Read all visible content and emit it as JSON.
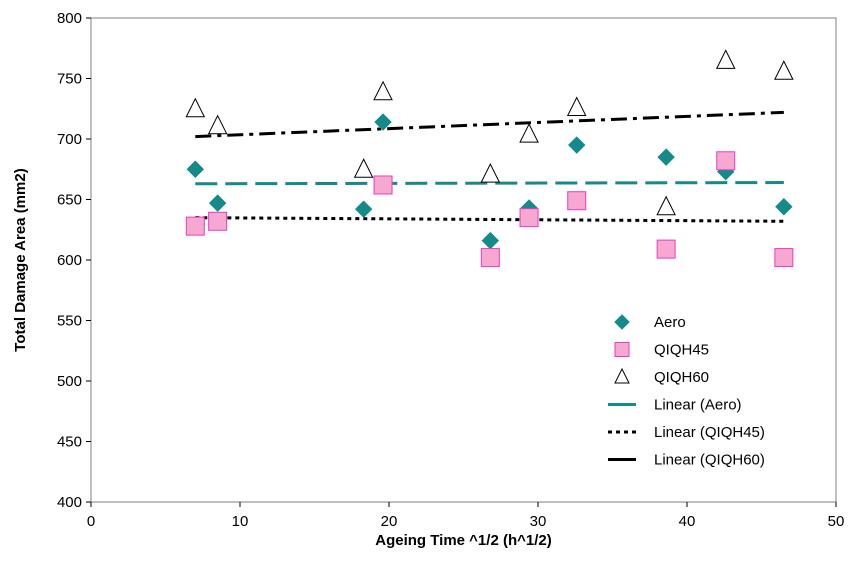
{
  "chart_data": {
    "type": "scatter",
    "title": "",
    "xlabel": "Ageing Time ^1/2 (h^1/2)",
    "ylabel": "Total Damage Area (mm2)",
    "xlim": [
      0,
      50
    ],
    "ylim": [
      400,
      800
    ],
    "xticks": [
      "0",
      "10",
      "20",
      "30",
      "40",
      "50"
    ],
    "yticks": [
      "400",
      "450",
      "500",
      "550",
      "600",
      "650",
      "700",
      "750",
      "800"
    ],
    "grid": false,
    "legend_position": "right-middle",
    "series": [
      {
        "name": "Aero",
        "marker": "diamond",
        "color": "#148a8a",
        "points": [
          [
            7,
            675
          ],
          [
            8.5,
            647
          ],
          [
            18.3,
            642
          ],
          [
            19.6,
            714
          ],
          [
            26.8,
            616
          ],
          [
            29.4,
            643
          ],
          [
            32.6,
            695
          ],
          [
            38.6,
            685
          ],
          [
            42.6,
            673
          ],
          [
            46.5,
            644
          ]
        ]
      },
      {
        "name": "QIQH45",
        "marker": "square",
        "color": "#f7a8d0",
        "stroke": "#e040c0",
        "points": [
          [
            7,
            628
          ],
          [
            8.5,
            632
          ],
          [
            19.6,
            662
          ],
          [
            26.8,
            602
          ],
          [
            29.4,
            635
          ],
          [
            32.6,
            649
          ],
          [
            38.6,
            609
          ],
          [
            42.6,
            682
          ],
          [
            46.5,
            602
          ]
        ]
      },
      {
        "name": "QIQH60",
        "marker": "triangle-open",
        "color": "#000000",
        "points": [
          [
            7,
            725
          ],
          [
            8.5,
            711
          ],
          [
            18.3,
            675
          ],
          [
            19.6,
            739
          ],
          [
            26.8,
            671
          ],
          [
            29.4,
            704
          ],
          [
            32.6,
            726
          ],
          [
            38.6,
            644
          ],
          [
            42.6,
            765
          ],
          [
            46.5,
            756
          ]
        ]
      },
      {
        "name": "Linear (Aero)",
        "type": "line",
        "style": "dashed",
        "color": "#148a8a",
        "points": [
          [
            7,
            663
          ],
          [
            46.5,
            664
          ]
        ]
      },
      {
        "name": "Linear (QIQH45)",
        "type": "line",
        "style": "dotted",
        "color": "#000000",
        "points": [
          [
            7,
            635
          ],
          [
            46.5,
            632
          ]
        ]
      },
      {
        "name": "Linear (QIQH60)",
        "type": "line",
        "style": "dashdot",
        "color": "#000000",
        "points": [
          [
            7,
            702
          ],
          [
            46.5,
            722
          ]
        ]
      }
    ]
  }
}
